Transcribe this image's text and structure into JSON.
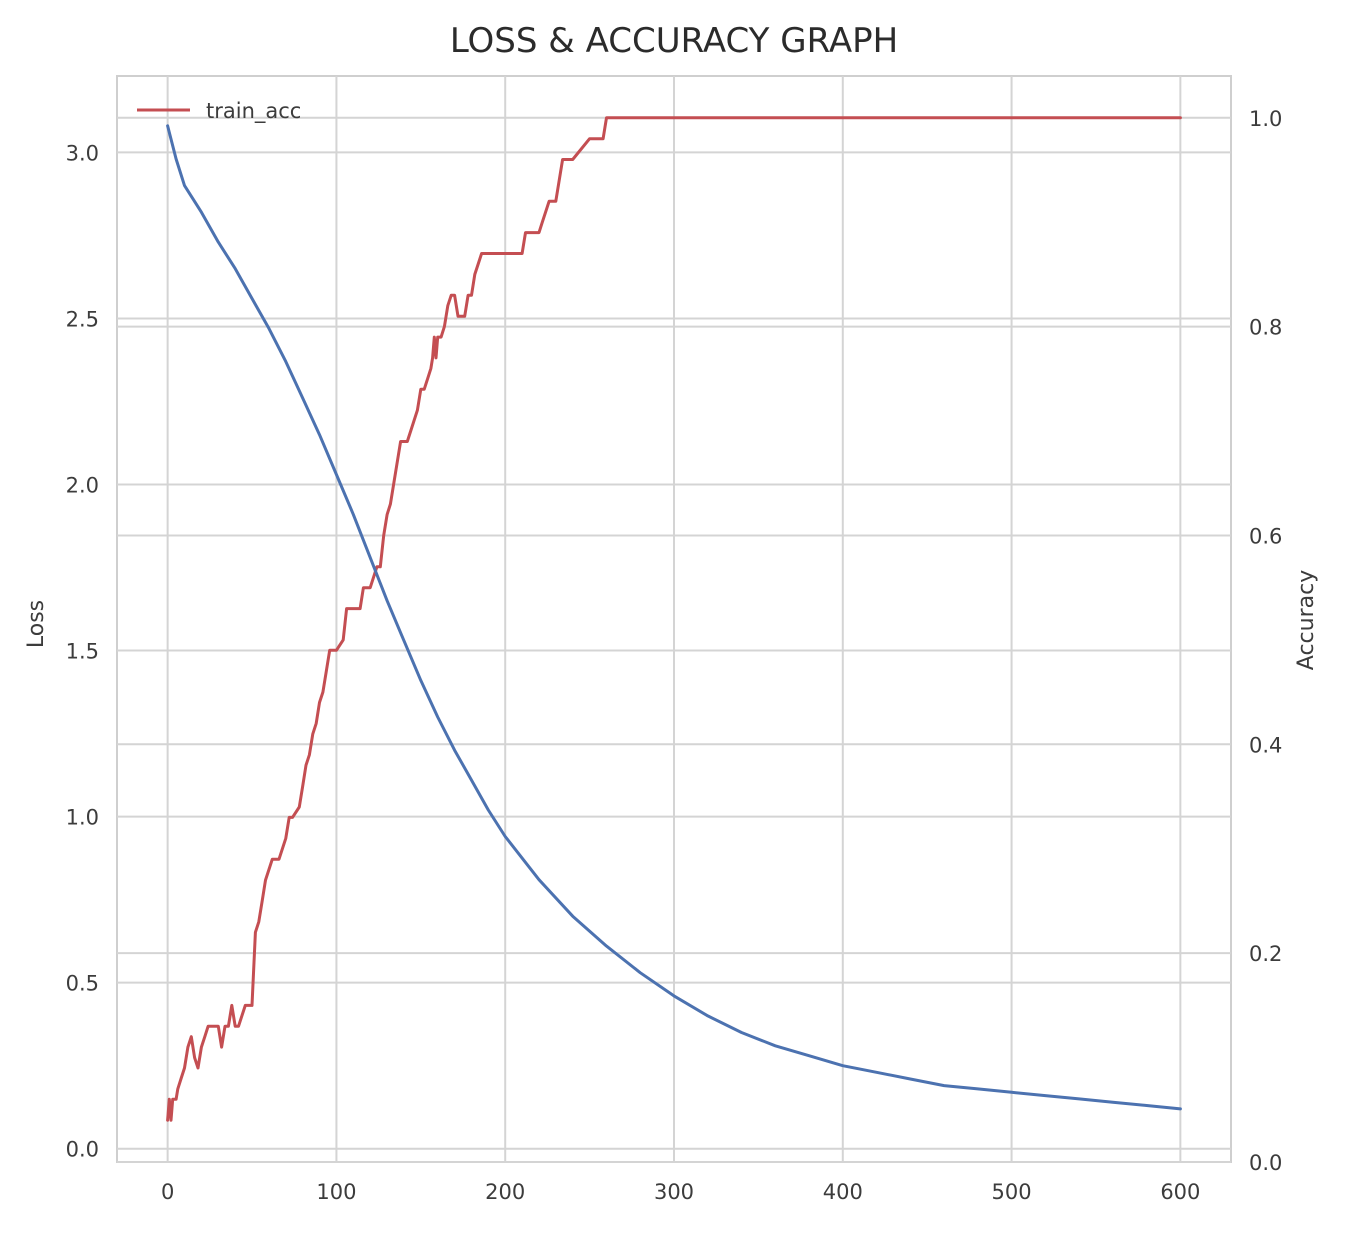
{
  "chart_data": {
    "type": "line",
    "title": "LOSS & ACCURACY GRAPH",
    "xlabel": "",
    "ylabel_left": "Loss",
    "ylabel_right": "Accuracy",
    "xlim": [
      -30,
      630
    ],
    "ylim_left": [
      -0.04,
      3.23
    ],
    "ylim_right": [
      0.0,
      1.04
    ],
    "x_ticks": [
      0,
      100,
      200,
      300,
      400,
      500,
      600
    ],
    "y_left_ticks": [
      0.0,
      0.5,
      1.0,
      1.5,
      2.0,
      2.5,
      3.0
    ],
    "y_left_tick_labels": [
      "0.0",
      "0.5",
      "1.0",
      "1.5",
      "2.0",
      "2.5",
      "3.0"
    ],
    "y_right_ticks": [
      0.0,
      0.2,
      0.4,
      0.6,
      0.8,
      1.0
    ],
    "y_right_tick_labels": [
      "0.0",
      "0.2",
      "0.4",
      "0.6",
      "0.8",
      "1.0"
    ],
    "grid": true,
    "legend": {
      "position": "top-left",
      "entries": [
        "train_acc"
      ]
    },
    "series": [
      {
        "name": "train_acc",
        "axis": "right",
        "color": "#c44e52",
        "x": [
          0,
          1,
          2,
          3,
          4,
          5,
          6,
          8,
          10,
          12,
          14,
          16,
          18,
          20,
          22,
          24,
          30,
          32,
          34,
          36,
          38,
          40,
          42,
          44,
          46,
          50,
          52,
          54,
          56,
          58,
          62,
          66,
          70,
          72,
          74,
          78,
          80,
          82,
          84,
          86,
          88,
          90,
          92,
          94,
          96,
          100,
          104,
          106,
          110,
          114,
          116,
          120,
          124,
          126,
          128,
          130,
          132,
          134,
          138,
          142,
          144,
          148,
          150,
          152,
          154,
          156,
          157,
          158,
          159,
          160,
          162,
          164,
          166,
          168,
          170,
          172,
          174,
          176,
          178,
          180,
          182,
          184,
          186,
          190,
          200,
          210,
          212,
          220,
          222,
          226,
          228,
          230,
          234,
          238,
          240,
          250,
          256,
          258,
          260,
          600
        ],
        "values": [
          0.04,
          0.06,
          0.04,
          0.06,
          0.06,
          0.06,
          0.07,
          0.08,
          0.09,
          0.11,
          0.12,
          0.1,
          0.09,
          0.11,
          0.12,
          0.13,
          0.13,
          0.11,
          0.13,
          0.13,
          0.15,
          0.13,
          0.13,
          0.14,
          0.15,
          0.15,
          0.22,
          0.23,
          0.25,
          0.27,
          0.29,
          0.29,
          0.31,
          0.33,
          0.33,
          0.34,
          0.36,
          0.38,
          0.39,
          0.41,
          0.42,
          0.44,
          0.45,
          0.47,
          0.49,
          0.49,
          0.5,
          0.53,
          0.53,
          0.53,
          0.55,
          0.55,
          0.57,
          0.57,
          0.6,
          0.62,
          0.63,
          0.65,
          0.69,
          0.69,
          0.7,
          0.72,
          0.74,
          0.74,
          0.75,
          0.76,
          0.77,
          0.79,
          0.77,
          0.79,
          0.79,
          0.8,
          0.82,
          0.83,
          0.83,
          0.81,
          0.81,
          0.81,
          0.83,
          0.83,
          0.85,
          0.86,
          0.87,
          0.87,
          0.87,
          0.87,
          0.89,
          0.89,
          0.9,
          0.92,
          0.92,
          0.92,
          0.96,
          0.96,
          0.96,
          0.98,
          0.98,
          0.98,
          1.0,
          1.0
        ]
      },
      {
        "name": "",
        "axis": "left",
        "color": "#4c72b0",
        "x": [
          0,
          5,
          10,
          15,
          20,
          30,
          40,
          50,
          60,
          70,
          80,
          90,
          100,
          110,
          120,
          130,
          140,
          150,
          160,
          170,
          180,
          190,
          200,
          220,
          240,
          260,
          280,
          300,
          320,
          340,
          360,
          380,
          400,
          420,
          440,
          460,
          480,
          500,
          520,
          540,
          560,
          580,
          600
        ],
        "values": [
          3.08,
          2.98,
          2.9,
          2.86,
          2.82,
          2.73,
          2.65,
          2.56,
          2.47,
          2.37,
          2.26,
          2.15,
          2.03,
          1.91,
          1.78,
          1.65,
          1.53,
          1.41,
          1.3,
          1.2,
          1.11,
          1.02,
          0.94,
          0.81,
          0.7,
          0.61,
          0.53,
          0.46,
          0.4,
          0.35,
          0.31,
          0.28,
          0.25,
          0.23,
          0.21,
          0.19,
          0.18,
          0.17,
          0.16,
          0.15,
          0.14,
          0.13,
          0.12
        ]
      }
    ]
  }
}
